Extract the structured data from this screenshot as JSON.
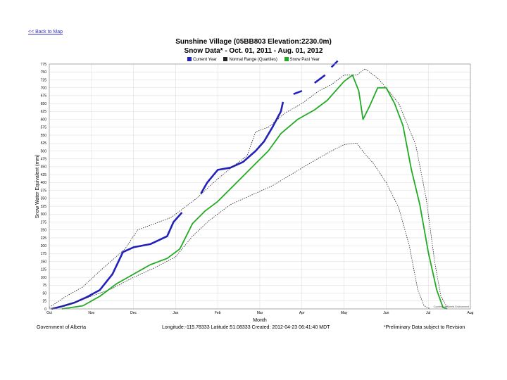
{
  "nav": {
    "back_link": "<< Back to Map"
  },
  "colors": {
    "current": "#2222bb",
    "normal": "#222222",
    "past": "#22aa22",
    "grid": "#d8d8d8"
  },
  "chart_data": {
    "type": "line",
    "title": "Sunshine Village (05BB803 Elevation:2230.0m)",
    "subtitle": "Snow Data* - Oct. 01, 2011 - Aug. 01, 2012",
    "xlabel": "Month",
    "ylabel": "Snow Water Equivalent (mm)",
    "x_ticks": [
      "Oct",
      "Nov",
      "Dec",
      "Jan",
      "Feb",
      "Mar",
      "Apr",
      "May",
      "Jun",
      "Jul",
      "Aug"
    ],
    "x_range": [
      0,
      10
    ],
    "ylim": [
      0,
      775
    ],
    "y_ticks": [
      0,
      25,
      50,
      75,
      100,
      125,
      150,
      175,
      200,
      225,
      250,
      275,
      300,
      325,
      350,
      375,
      400,
      425,
      450,
      475,
      500,
      525,
      550,
      575,
      600,
      625,
      650,
      675,
      700,
      725,
      750,
      775
    ],
    "legend": [
      "Current Year",
      "Normal Range (Quartiles)",
      "Snow Past Year"
    ],
    "series": [
      {
        "name": "Current Year",
        "color": "#2222bb",
        "segments": [
          [
            [
              0.05,
              0
            ],
            [
              0.3,
              8
            ],
            [
              0.6,
              20
            ],
            [
              0.9,
              38
            ],
            [
              1.2,
              60
            ],
            [
              1.5,
              110
            ],
            [
              1.75,
              180
            ],
            [
              2.0,
              195
            ],
            [
              2.4,
              205
            ],
            [
              2.8,
              230
            ],
            [
              2.95,
              275
            ],
            [
              3.15,
              305
            ]
          ],
          [
            [
              3.6,
              365
            ],
            [
              3.75,
              400
            ],
            [
              4.0,
              440
            ],
            [
              4.3,
              447
            ],
            [
              4.6,
              465
            ],
            [
              4.9,
              500
            ],
            [
              5.1,
              530
            ],
            [
              5.3,
              575
            ],
            [
              5.5,
              625
            ],
            [
              5.55,
              655
            ]
          ],
          [
            [
              5.8,
              680
            ],
            [
              6.0,
              690
            ]
          ],
          [
            [
              6.3,
              715
            ],
            [
              6.55,
              740
            ]
          ],
          [
            [
              6.7,
              765
            ],
            [
              6.85,
              785
            ]
          ]
        ]
      },
      {
        "name": "Normal Upper Quartile",
        "color": "#222222",
        "points": [
          [
            0,
            5
          ],
          [
            0.4,
            40
          ],
          [
            0.8,
            70
          ],
          [
            1.2,
            120
          ],
          [
            1.5,
            155
          ],
          [
            1.8,
            190
          ],
          [
            2.1,
            250
          ],
          [
            2.5,
            270
          ],
          [
            2.9,
            290
          ],
          [
            3.1,
            310
          ],
          [
            3.5,
            350
          ],
          [
            3.9,
            400
          ],
          [
            4.3,
            445
          ],
          [
            4.7,
            485
          ],
          [
            4.9,
            560
          ],
          [
            5.2,
            575
          ],
          [
            5.6,
            620
          ],
          [
            6.0,
            650
          ],
          [
            6.4,
            690
          ],
          [
            6.7,
            710
          ],
          [
            7.0,
            740
          ],
          [
            7.3,
            740
          ],
          [
            7.5,
            760
          ],
          [
            7.8,
            730
          ],
          [
            8.0,
            700
          ],
          [
            8.3,
            650
          ],
          [
            8.7,
            520
          ],
          [
            8.95,
            350
          ],
          [
            9.15,
            150
          ],
          [
            9.3,
            40
          ],
          [
            9.45,
            5
          ]
        ]
      },
      {
        "name": "Normal Lower Quartile",
        "color": "#222222",
        "points": [
          [
            0,
            0
          ],
          [
            0.5,
            15
          ],
          [
            1.0,
            40
          ],
          [
            1.5,
            65
          ],
          [
            2.0,
            100
          ],
          [
            2.5,
            130
          ],
          [
            3.0,
            165
          ],
          [
            3.4,
            230
          ],
          [
            3.8,
            280
          ],
          [
            4.3,
            330
          ],
          [
            4.8,
            360
          ],
          [
            5.3,
            390
          ],
          [
            5.8,
            430
          ],
          [
            6.3,
            470
          ],
          [
            6.7,
            500
          ],
          [
            7.0,
            520
          ],
          [
            7.3,
            525
          ],
          [
            7.5,
            490
          ],
          [
            7.7,
            460
          ],
          [
            8.0,
            400
          ],
          [
            8.3,
            320
          ],
          [
            8.55,
            200
          ],
          [
            8.75,
            60
          ],
          [
            8.9,
            10
          ],
          [
            9.05,
            0
          ]
        ]
      },
      {
        "name": "Snow Past Year",
        "color": "#22aa22",
        "points": [
          [
            0.3,
            0
          ],
          [
            0.8,
            10
          ],
          [
            1.2,
            40
          ],
          [
            1.6,
            80
          ],
          [
            2.0,
            110
          ],
          [
            2.4,
            140
          ],
          [
            2.8,
            160
          ],
          [
            3.1,
            190
          ],
          [
            3.4,
            270
          ],
          [
            3.7,
            310
          ],
          [
            4.0,
            340
          ],
          [
            4.3,
            380
          ],
          [
            4.6,
            420
          ],
          [
            4.9,
            460
          ],
          [
            5.2,
            500
          ],
          [
            5.5,
            555
          ],
          [
            5.9,
            600
          ],
          [
            6.3,
            630
          ],
          [
            6.6,
            660
          ],
          [
            7.0,
            720
          ],
          [
            7.2,
            740
          ],
          [
            7.35,
            690
          ],
          [
            7.45,
            600
          ],
          [
            7.6,
            640
          ],
          [
            7.8,
            700
          ],
          [
            8.0,
            700
          ],
          [
            8.2,
            650
          ],
          [
            8.4,
            580
          ],
          [
            8.6,
            440
          ],
          [
            8.8,
            330
          ],
          [
            9.0,
            180
          ],
          [
            9.2,
            60
          ],
          [
            9.35,
            5
          ],
          [
            9.45,
            0
          ]
        ]
      }
    ],
    "annotation": "Courtesy of Alberta Environment"
  },
  "footer": {
    "agency": "Government of Alberta",
    "location": "Longitude:-115.78333 Latitude:51.08333",
    "created": "Created: 2012-04-23 06:41:40 MDT",
    "disclaimer": "*Preliminary Data subject to Revision"
  }
}
